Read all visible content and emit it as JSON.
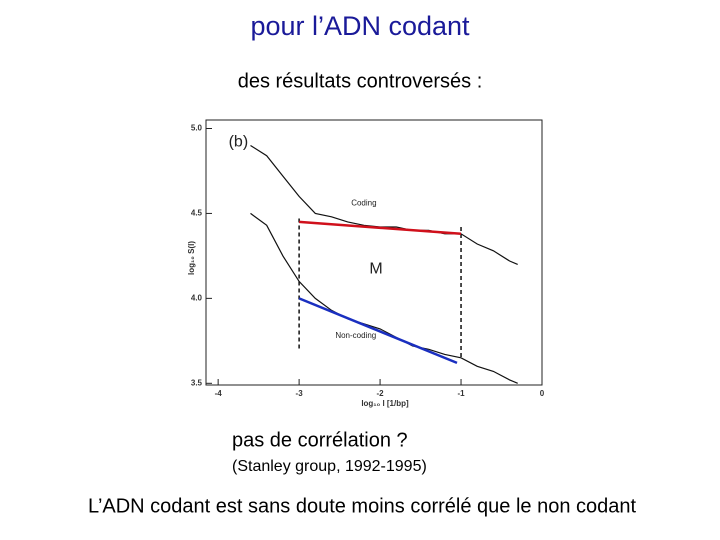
{
  "header": {
    "title": "pour l’ADN codant",
    "subtitle": "des résultats controversés :"
  },
  "chart_data": {
    "type": "line",
    "xlim": [
      -4.15,
      0
    ],
    "ylim": [
      3.49,
      5.05
    ],
    "xticks": [
      -4,
      -3,
      -2,
      -1,
      0
    ],
    "yticks": [
      {
        "value": 5,
        "label": "5.0"
      },
      {
        "value": 4.5,
        "label": "4.5"
      },
      {
        "value": 4,
        "label": "4.0"
      },
      {
        "value": 3.5,
        "label": "3.5"
      }
    ],
    "xlabel": "log₁₀ l [1/bp]",
    "ylabel": "log₁₀ S(l)",
    "annotations": [
      "(b)",
      "M"
    ],
    "x": [
      -3.6,
      -3.4,
      -3.2,
      -3.0,
      -2.8,
      -2.6,
      -2.4,
      -2.2,
      -2.0,
      -1.8,
      -1.6,
      -1.4,
      -1.2,
      -1.0,
      -0.8,
      -0.6,
      -0.4,
      -0.3
    ],
    "series": [
      {
        "name": "Coding",
        "color": "#111111",
        "values": [
          4.9,
          4.84,
          4.72,
          4.6,
          4.5,
          4.48,
          4.45,
          4.43,
          4.42,
          4.42,
          4.4,
          4.4,
          4.38,
          4.38,
          4.32,
          4.28,
          4.22,
          4.2
        ]
      },
      {
        "name": "Non-coding",
        "color": "#111111",
        "values": [
          4.5,
          4.43,
          4.25,
          4.1,
          4.0,
          3.93,
          3.88,
          3.85,
          3.82,
          3.77,
          3.72,
          3.7,
          3.67,
          3.65,
          3.6,
          3.57,
          3.52,
          3.5
        ]
      }
    ],
    "fit_lines": [
      {
        "color": "#d0101b",
        "x": [
          -3,
          -1
        ],
        "values": [
          4.45,
          4.38
        ]
      },
      {
        "color": "#1a2fc0",
        "x": [
          -3,
          -1.05
        ],
        "values": [
          4.0,
          3.62
        ]
      }
    ],
    "reference_lines": [
      -3,
      -1
    ]
  },
  "caption": {
    "question": "pas de corrélation ?",
    "source": "(Stanley group, 1992-1995)"
  },
  "conclusion": "L’ADN codant est sans doute moins corrélé que le non codant"
}
